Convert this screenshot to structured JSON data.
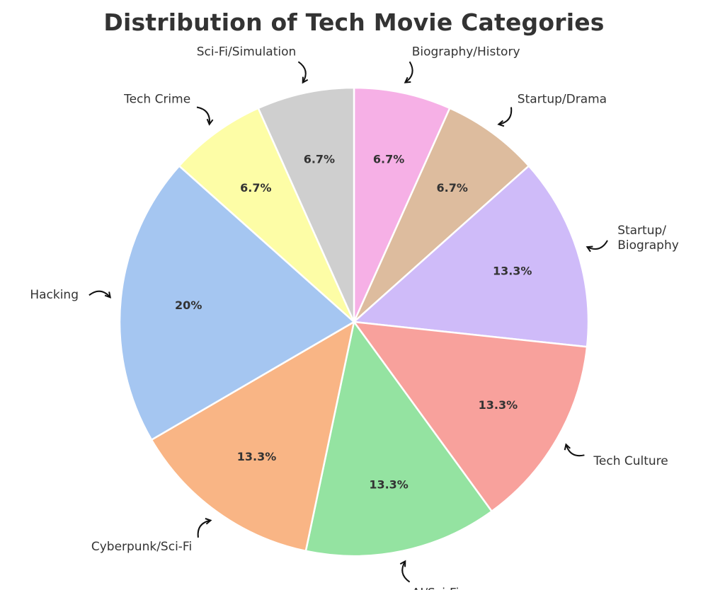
{
  "chart_data": {
    "type": "pie",
    "title": "Distribution of Tech Movie Categories",
    "start_angle_deg": 90,
    "direction": "clockwise",
    "slices": [
      {
        "label": "Biography/History",
        "value": 6.7,
        "pct_label": "6.7%",
        "color": "#F6B0E6"
      },
      {
        "label": "Startup/Drama",
        "value": 6.7,
        "pct_label": "6.7%",
        "color": "#DDBC9E"
      },
      {
        "label": "Startup/\nBiography",
        "value": 13.3,
        "pct_label": "13.3%",
        "color": "#CFBBF9"
      },
      {
        "label": "Tech Culture",
        "value": 13.3,
        "pct_label": "13.3%",
        "color": "#F8A19C"
      },
      {
        "label": "AI/Sci-Fi",
        "value": 13.3,
        "pct_label": "13.3%",
        "color": "#94E3A1"
      },
      {
        "label": "Cyberpunk/Sci-Fi",
        "value": 13.3,
        "pct_label": "13.3%",
        "color": "#F9B585"
      },
      {
        "label": "Hacking",
        "value": 20,
        "pct_label": "20%",
        "color": "#A5C6F1"
      },
      {
        "label": "Tech Crime",
        "value": 6.7,
        "pct_label": "6.7%",
        "color": "#FDFDA6"
      },
      {
        "label": "Sci-Fi/Simulation",
        "value": 6.7,
        "pct_label": "6.7%",
        "color": "#CFCFCF"
      }
    ]
  }
}
